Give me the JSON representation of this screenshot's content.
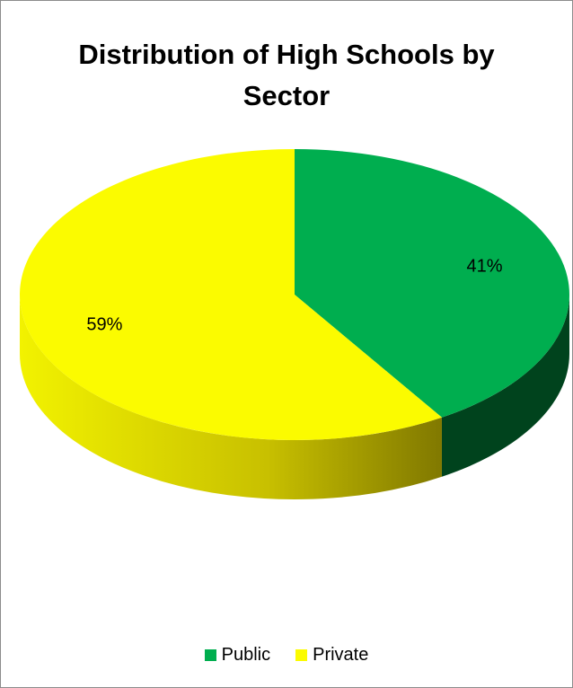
{
  "chart_data": {
    "type": "pie",
    "title_lines": [
      "Distribution of High Schools by",
      "Sector"
    ],
    "slices": [
      {
        "label": "Public",
        "value": 41,
        "display": "41%",
        "color": "#00ae4f",
        "side_color": "#00431d"
      },
      {
        "label": "Private",
        "value": 59,
        "display": "59%",
        "color": "#fbfb00",
        "side_color": "#9e9400"
      }
    ],
    "legend": {
      "position": "bottom"
    },
    "style": "3d"
  }
}
